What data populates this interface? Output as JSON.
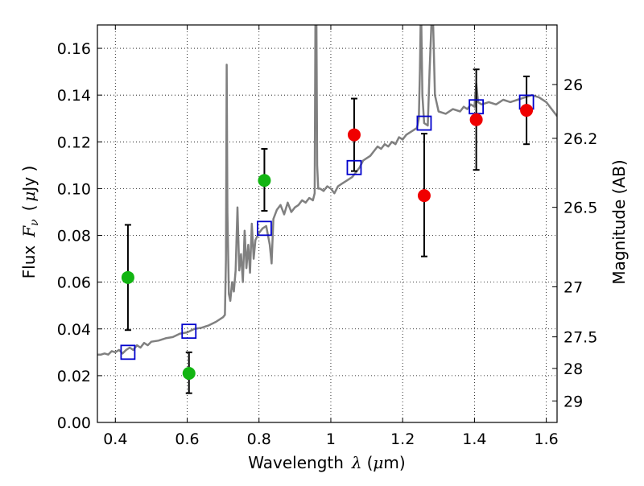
{
  "chart_data": {
    "type": "scatter",
    "x_axis": {
      "label_prefix": "Wavelength",
      "label_symbol": "λ",
      "label_unit_open": "(",
      "label_unit_mu": "μ",
      "label_unit_rest": "m)",
      "range": [
        0.35,
        1.63
      ],
      "ticks": [
        0.4,
        0.6,
        0.8,
        1.0,
        1.2,
        1.4,
        1.6
      ],
      "tick_labels": [
        "0.4",
        "0.6",
        "0.8",
        "1",
        "1.2",
        "1.4",
        "1.6"
      ]
    },
    "y_axis": {
      "label_prefix": "Flux",
      "label_symbol": "F",
      "label_subscript": "ν",
      "label_unit_open": "(",
      "label_unit_mu": "μ",
      "label_unit_rest": "Jy )",
      "range": [
        0.0,
        0.17
      ],
      "ticks": [
        0.0,
        0.02,
        0.04,
        0.06,
        0.08,
        0.1,
        0.12,
        0.14,
        0.16
      ],
      "tick_labels": [
        "0.00",
        "0.02",
        "0.04",
        "0.06",
        "0.08",
        "0.10",
        "0.12",
        "0.14",
        "0.16"
      ]
    },
    "y2_axis": {
      "label": "Magnitude (AB)",
      "tick_labels": [
        "26",
        "26.2",
        "26.5",
        "27",
        "27.5",
        "28",
        "29"
      ],
      "tick_flux_positions": [
        0.1445,
        0.1215,
        0.092,
        0.058,
        0.0366,
        0.0231,
        0.0092
      ]
    },
    "grid": true,
    "colors": {
      "spectrum": "#808080",
      "green": "#12b512",
      "red": "#f00000",
      "model": "#0000cc",
      "errorbar": "#000000"
    },
    "spectrum": [
      [
        0.35,
        0.029
      ],
      [
        0.36,
        0.029
      ],
      [
        0.37,
        0.0295
      ],
      [
        0.38,
        0.029
      ],
      [
        0.39,
        0.0305
      ],
      [
        0.4,
        0.03
      ],
      [
        0.41,
        0.031
      ],
      [
        0.42,
        0.0295
      ],
      [
        0.43,
        0.031
      ],
      [
        0.44,
        0.032
      ],
      [
        0.45,
        0.031
      ],
      [
        0.46,
        0.033
      ],
      [
        0.47,
        0.032
      ],
      [
        0.48,
        0.034
      ],
      [
        0.49,
        0.033
      ],
      [
        0.5,
        0.0345
      ],
      [
        0.52,
        0.035
      ],
      [
        0.54,
        0.036
      ],
      [
        0.56,
        0.0365
      ],
      [
        0.58,
        0.038
      ],
      [
        0.6,
        0.0385
      ],
      [
        0.62,
        0.04
      ],
      [
        0.64,
        0.0405
      ],
      [
        0.66,
        0.0415
      ],
      [
        0.68,
        0.043
      ],
      [
        0.7,
        0.045
      ],
      [
        0.705,
        0.046
      ],
      [
        0.708,
        0.07
      ],
      [
        0.71,
        0.153
      ],
      [
        0.712,
        0.09
      ],
      [
        0.716,
        0.055
      ],
      [
        0.72,
        0.052
      ],
      [
        0.725,
        0.06
      ],
      [
        0.73,
        0.056
      ],
      [
        0.735,
        0.065
      ],
      [
        0.74,
        0.092
      ],
      [
        0.745,
        0.065
      ],
      [
        0.75,
        0.072
      ],
      [
        0.755,
        0.06
      ],
      [
        0.76,
        0.082
      ],
      [
        0.765,
        0.066
      ],
      [
        0.77,
        0.076
      ],
      [
        0.775,
        0.064
      ],
      [
        0.78,
        0.085
      ],
      [
        0.785,
        0.07
      ],
      [
        0.79,
        0.078
      ],
      [
        0.8,
        0.081
      ],
      [
        0.81,
        0.083
      ],
      [
        0.82,
        0.084
      ],
      [
        0.83,
        0.076
      ],
      [
        0.835,
        0.068
      ],
      [
        0.84,
        0.087
      ],
      [
        0.85,
        0.091
      ],
      [
        0.86,
        0.093
      ],
      [
        0.87,
        0.089
      ],
      [
        0.88,
        0.094
      ],
      [
        0.89,
        0.09
      ],
      [
        0.9,
        0.092
      ],
      [
        0.91,
        0.093
      ],
      [
        0.92,
        0.095
      ],
      [
        0.93,
        0.094
      ],
      [
        0.94,
        0.096
      ],
      [
        0.95,
        0.095
      ],
      [
        0.955,
        0.098
      ],
      [
        0.957,
        0.17
      ],
      [
        0.958,
        0.17
      ],
      [
        0.96,
        0.17
      ],
      [
        0.962,
        0.11
      ],
      [
        0.965,
        0.1
      ],
      [
        0.97,
        0.1
      ],
      [
        0.98,
        0.099
      ],
      [
        0.99,
        0.101
      ],
      [
        1.0,
        0.1
      ],
      [
        1.01,
        0.098
      ],
      [
        1.02,
        0.101
      ],
      [
        1.03,
        0.102
      ],
      [
        1.04,
        0.103
      ],
      [
        1.05,
        0.104
      ],
      [
        1.06,
        0.105
      ],
      [
        1.07,
        0.107
      ],
      [
        1.08,
        0.109
      ],
      [
        1.09,
        0.112
      ],
      [
        1.1,
        0.113
      ],
      [
        1.11,
        0.114
      ],
      [
        1.12,
        0.116
      ],
      [
        1.13,
        0.118
      ],
      [
        1.14,
        0.117
      ],
      [
        1.15,
        0.119
      ],
      [
        1.16,
        0.118
      ],
      [
        1.17,
        0.12
      ],
      [
        1.18,
        0.119
      ],
      [
        1.19,
        0.122
      ],
      [
        1.2,
        0.121
      ],
      [
        1.21,
        0.123
      ],
      [
        1.22,
        0.124
      ],
      [
        1.23,
        0.125
      ],
      [
        1.24,
        0.126
      ],
      [
        1.245,
        0.13
      ],
      [
        1.248,
        0.15
      ],
      [
        1.25,
        0.17
      ],
      [
        1.252,
        0.17
      ],
      [
        1.255,
        0.14
      ],
      [
        1.26,
        0.128
      ],
      [
        1.27,
        0.127
      ],
      [
        1.275,
        0.15
      ],
      [
        1.28,
        0.17
      ],
      [
        1.285,
        0.17
      ],
      [
        1.29,
        0.14
      ],
      [
        1.3,
        0.133
      ],
      [
        1.32,
        0.132
      ],
      [
        1.34,
        0.134
      ],
      [
        1.36,
        0.133
      ],
      [
        1.37,
        0.135
      ],
      [
        1.38,
        0.134
      ],
      [
        1.39,
        0.136
      ],
      [
        1.4,
        0.135
      ],
      [
        1.405,
        0.145
      ],
      [
        1.41,
        0.137
      ],
      [
        1.42,
        0.136
      ],
      [
        1.44,
        0.137
      ],
      [
        1.46,
        0.136
      ],
      [
        1.48,
        0.138
      ],
      [
        1.5,
        0.137
      ],
      [
        1.52,
        0.138
      ],
      [
        1.54,
        0.139
      ],
      [
        1.56,
        0.14
      ],
      [
        1.58,
        0.139
      ],
      [
        1.6,
        0.137
      ],
      [
        1.62,
        0.133
      ],
      [
        1.63,
        0.131
      ]
    ],
    "observed_green": [
      {
        "x": 0.435,
        "y": 0.062,
        "err_low": 0.0395,
        "err_high": 0.0845
      },
      {
        "x": 0.605,
        "y": 0.021,
        "err_low": 0.0125,
        "err_high": 0.03
      },
      {
        "x": 0.815,
        "y": 0.1035,
        "err_low": 0.0905,
        "err_high": 0.117
      }
    ],
    "observed_red": [
      {
        "x": 1.065,
        "y": 0.123,
        "err_low": 0.1075,
        "err_high": 0.1385
      },
      {
        "x": 1.26,
        "y": 0.097,
        "err_low": 0.071,
        "err_high": 0.1235
      },
      {
        "x": 1.405,
        "y": 0.1295,
        "err_low": 0.108,
        "err_high": 0.151
      },
      {
        "x": 1.545,
        "y": 0.1335,
        "err_low": 0.119,
        "err_high": 0.148
      }
    ],
    "model_points": [
      {
        "x": 0.435,
        "y": 0.03
      },
      {
        "x": 0.605,
        "y": 0.039
      },
      {
        "x": 0.815,
        "y": 0.083
      },
      {
        "x": 1.065,
        "y": 0.109
      },
      {
        "x": 1.26,
        "y": 0.128
      },
      {
        "x": 1.405,
        "y": 0.135
      },
      {
        "x": 1.545,
        "y": 0.137
      }
    ]
  }
}
